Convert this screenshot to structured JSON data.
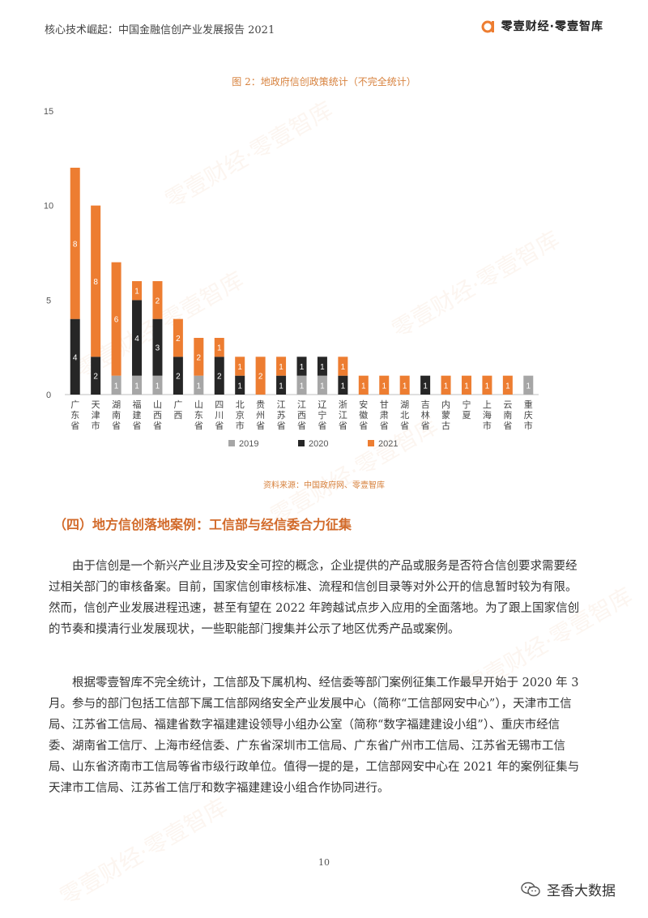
{
  "header": {
    "title": "核心技术崛起：中国金融信创产业发展报告 2021",
    "brand": "零壹财经·零壹智库"
  },
  "figure": {
    "title": "图 2：地政府信创政策统计（不完全统计）",
    "source": "资料来源：中国政府网、零壹智库"
  },
  "chart_data": {
    "type": "bar",
    "stacked": true,
    "categories": [
      "广东省",
      "天津市",
      "湖南省",
      "福建省",
      "山西省",
      "广西",
      "山东省",
      "四川省",
      "北京市",
      "贵州省",
      "江苏省",
      "江西省",
      "辽宁省",
      "浙江省",
      "安徽省",
      "甘肃省",
      "湖北省",
      "吉林省",
      "内蒙古",
      "宁夏",
      "上海市",
      "云南省",
      "重庆市"
    ],
    "series": [
      {
        "name": "2019",
        "color": "#a6a6a6",
        "values": [
          0,
          0,
          1,
          1,
          1,
          0,
          1,
          0,
          0,
          0,
          0,
          1,
          1,
          0,
          0,
          0,
          0,
          0,
          0,
          0,
          0,
          0,
          1
        ]
      },
      {
        "name": "2020",
        "color": "#262626",
        "values": [
          4,
          2,
          0,
          4,
          3,
          2,
          0,
          2,
          1,
          0,
          1,
          1,
          1,
          1,
          0,
          0,
          0,
          1,
          0,
          0,
          0,
          0,
          0
        ]
      },
      {
        "name": "2021",
        "color": "#ed7d31",
        "values": [
          8,
          8,
          6,
          1,
          2,
          2,
          2,
          1,
          1,
          2,
          1,
          0,
          0,
          1,
          1,
          1,
          1,
          0,
          1,
          1,
          1,
          1,
          0
        ]
      }
    ],
    "ylim": [
      0,
      15
    ],
    "yticks": [
      0,
      5,
      10,
      15
    ],
    "grid": false,
    "legend_position": "bottom"
  },
  "section": {
    "title": "（四）地方信创落地案例：工信部与经信委合力征集"
  },
  "paragraphs": [
    "由于信创是一个新兴产业且涉及安全可控的概念，企业提供的产品或服务是否符合信创要求需要经过相关部门的审核备案。目前，国家信创审核标准、流程和信创目录等对外公开的信息暂时较为有限。然而，信创产业发展进程迅速，甚至有望在 2022 年跨越试点步入应用的全面落地。为了跟上国家信创的节奏和摸清行业发展现状，一些职能部门搜集并公示了地区优秀产品或案例。",
    "根据零壹智库不完全统计，工信部及下属机构、经信委等部门案例征集工作最早开始于 2020 年 3 月。参与的部门包括工信部下属工信部网络安全产业发展中心（简称“工信部网安中心”），天津市工信局、江苏省工信局、福建省数字福建建设领导小组办公室（简称“数字福建建设小组”）、重庆市经信委、湖南省工信厅、上海市经信委、广东省深圳市工信局、广东省广州市工信局、江苏省无锡市工信局、山东省济南市工信局等省市级行政单位。值得一提的是，工信部网安中心在 2021 年的案例征集与天津市工信局、江苏省工信厅和数字福建建设小组合作协同进行。"
  ],
  "page_number": "10",
  "watermark": {
    "account": "圣香大数据",
    "text": "零壹财经·零壹智库"
  }
}
